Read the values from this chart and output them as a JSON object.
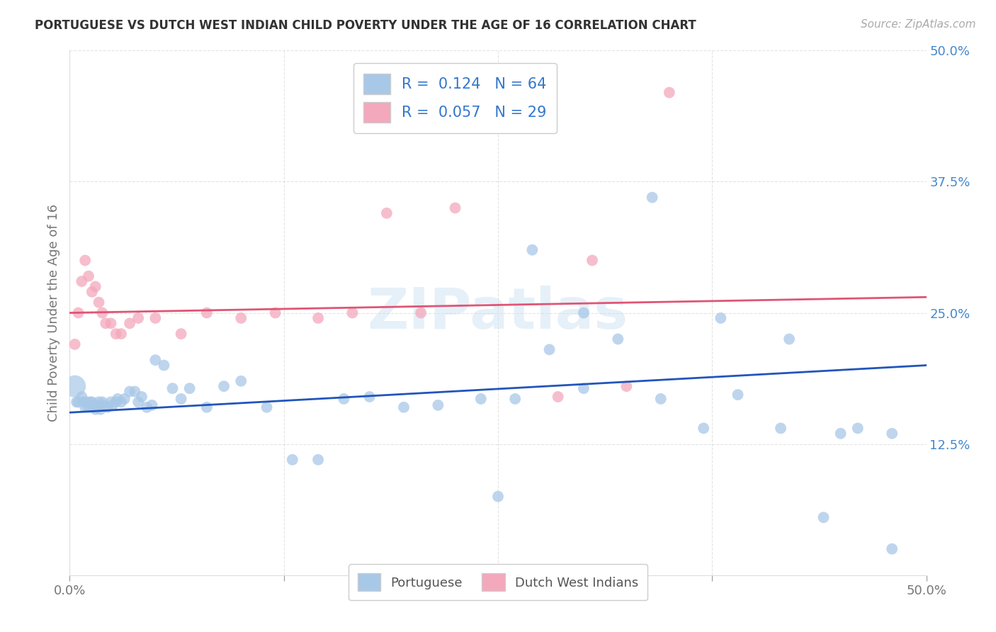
{
  "title": "PORTUGUESE VS DUTCH WEST INDIAN CHILD POVERTY UNDER THE AGE OF 16 CORRELATION CHART",
  "source": "Source: ZipAtlas.com",
  "ylabel": "Child Poverty Under the Age of 16",
  "xlim": [
    0.0,
    0.5
  ],
  "ylim": [
    0.0,
    0.5
  ],
  "portuguese_color": "#a8c8e8",
  "dutch_color": "#f4a8bc",
  "portuguese_line_color": "#2255bb",
  "dutch_line_color": "#e05575",
  "portuguese_R": 0.124,
  "portuguese_N": 64,
  "dutch_R": 0.057,
  "dutch_N": 29,
  "watermark": "ZIPatlas",
  "portuguese_x": [
    0.004,
    0.005,
    0.007,
    0.008,
    0.009,
    0.01,
    0.011,
    0.012,
    0.013,
    0.014,
    0.015,
    0.016,
    0.017,
    0.018,
    0.019,
    0.02,
    0.022,
    0.024,
    0.025,
    0.027,
    0.028,
    0.03,
    0.032,
    0.035,
    0.038,
    0.04,
    0.042,
    0.045,
    0.048,
    0.05,
    0.055,
    0.06,
    0.065,
    0.07,
    0.08,
    0.09,
    0.1,
    0.115,
    0.13,
    0.145,
    0.16,
    0.175,
    0.195,
    0.215,
    0.24,
    0.26,
    0.28,
    0.3,
    0.32,
    0.345,
    0.37,
    0.39,
    0.415,
    0.44,
    0.46,
    0.48,
    0.3,
    0.34,
    0.38,
    0.42,
    0.45,
    0.48,
    0.25,
    0.27
  ],
  "portuguese_y": [
    0.165,
    0.165,
    0.17,
    0.165,
    0.16,
    0.165,
    0.16,
    0.165,
    0.165,
    0.16,
    0.158,
    0.162,
    0.165,
    0.158,
    0.165,
    0.162,
    0.16,
    0.165,
    0.162,
    0.165,
    0.168,
    0.165,
    0.168,
    0.175,
    0.175,
    0.165,
    0.17,
    0.16,
    0.162,
    0.205,
    0.2,
    0.178,
    0.168,
    0.178,
    0.16,
    0.18,
    0.185,
    0.16,
    0.11,
    0.11,
    0.168,
    0.17,
    0.16,
    0.162,
    0.168,
    0.168,
    0.215,
    0.178,
    0.225,
    0.168,
    0.14,
    0.172,
    0.14,
    0.055,
    0.14,
    0.135,
    0.25,
    0.36,
    0.245,
    0.225,
    0.135,
    0.025,
    0.075,
    0.31
  ],
  "portuguese_sizes": [
    30,
    30,
    30,
    30,
    30,
    30,
    30,
    30,
    30,
    30,
    30,
    30,
    30,
    30,
    30,
    30,
    30,
    30,
    30,
    30,
    30,
    30,
    30,
    30,
    30,
    30,
    30,
    30,
    30,
    30,
    30,
    30,
    30,
    30,
    30,
    30,
    30,
    30,
    30,
    30,
    30,
    30,
    30,
    30,
    30,
    30,
    30,
    30,
    30,
    30,
    30,
    30,
    30,
    30,
    30,
    30,
    30,
    30,
    30,
    30,
    30,
    30,
    30,
    30
  ],
  "dutch_x": [
    0.003,
    0.005,
    0.007,
    0.009,
    0.011,
    0.013,
    0.015,
    0.017,
    0.019,
    0.021,
    0.024,
    0.027,
    0.03,
    0.035,
    0.04,
    0.05,
    0.065,
    0.08,
    0.1,
    0.12,
    0.145,
    0.165,
    0.185,
    0.205,
    0.225,
    0.285,
    0.305,
    0.325,
    0.35
  ],
  "dutch_y": [
    0.22,
    0.25,
    0.28,
    0.3,
    0.285,
    0.27,
    0.275,
    0.26,
    0.25,
    0.24,
    0.24,
    0.23,
    0.23,
    0.24,
    0.245,
    0.245,
    0.23,
    0.25,
    0.245,
    0.25,
    0.245,
    0.25,
    0.345,
    0.25,
    0.35,
    0.17,
    0.3,
    0.18,
    0.46
  ]
}
